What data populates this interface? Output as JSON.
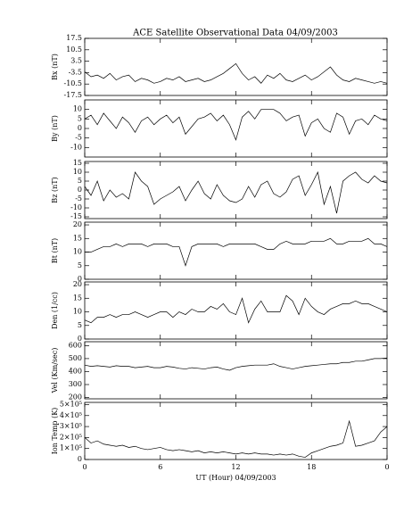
{
  "chart_data": [
    {
      "type": "line",
      "title": "ACE Satellite Observational Data   04/09/2003",
      "y_label": "Bx (nT)",
      "x": [
        0,
        0.5,
        1,
        1.5,
        2,
        2.5,
        3,
        3.5,
        4,
        4.5,
        5,
        5.5,
        6,
        6.5,
        7,
        7.5,
        8,
        8.5,
        9,
        9.5,
        10,
        10.5,
        11,
        11.5,
        12,
        12.5,
        13,
        13.5,
        14,
        14.5,
        15,
        15.5,
        16,
        16.5,
        17,
        17.5,
        18,
        18.5,
        19,
        19.5,
        20,
        20.5,
        21,
        21.5,
        22,
        22.5,
        23,
        23.5,
        24
      ],
      "series": [
        {
          "name": "Bx",
          "color": "#000000",
          "values": [
            -3,
            -6,
            -5,
            -7,
            -4,
            -8,
            -6,
            -5,
            -9,
            -7,
            -8,
            -10,
            -9,
            -7,
            -8,
            -6,
            -9,
            -8,
            -7,
            -9,
            -8,
            -6,
            -4,
            -1,
            2,
            -4,
            -8,
            -6,
            -10,
            -5,
            -7,
            -4,
            -8,
            -9,
            -7,
            -5,
            -8,
            -6,
            -3,
            0,
            -5,
            -8,
            -9,
            -7,
            -8,
            -9,
            -10,
            -9,
            -10
          ]
        }
      ],
      "ylim": [
        -17.5,
        17.5
      ],
      "yticks": [
        17.5,
        10.5,
        3.5,
        -3.5,
        -10.5,
        -17.5
      ]
    },
    {
      "type": "line",
      "y_label": "By (nT)",
      "x": [
        0,
        0.5,
        1,
        1.5,
        2,
        2.5,
        3,
        3.5,
        4,
        4.5,
        5,
        5.5,
        6,
        6.5,
        7,
        7.5,
        8,
        8.5,
        9,
        9.5,
        10,
        10.5,
        11,
        11.5,
        12,
        12.5,
        13,
        13.5,
        14,
        14.5,
        15,
        15.5,
        16,
        16.5,
        17,
        17.5,
        18,
        18.5,
        19,
        19.5,
        20,
        20.5,
        21,
        21.5,
        22,
        22.5,
        23,
        23.5,
        24
      ],
      "series": [
        {
          "name": "By",
          "color": "#000000",
          "values": [
            5,
            7,
            2,
            8,
            4,
            0,
            6,
            3,
            -2,
            4,
            6,
            2,
            5,
            7,
            3,
            6,
            -3,
            1,
            5,
            6,
            8,
            4,
            7,
            2,
            -6,
            6,
            9,
            5,
            10,
            10,
            10,
            8,
            4,
            6,
            7,
            -4,
            3,
            5,
            0,
            -2,
            8,
            6,
            -3,
            4,
            5,
            2,
            7,
            5,
            4
          ]
        }
      ],
      "ylim": [
        -15,
        15
      ],
      "yticks": [
        10,
        5,
        0,
        -5,
        -10
      ]
    },
    {
      "type": "line",
      "y_label": "Bz (nT)",
      "x": [
        0,
        0.5,
        1,
        1.5,
        2,
        2.5,
        3,
        3.5,
        4,
        4.5,
        5,
        5.5,
        6,
        6.5,
        7,
        7.5,
        8,
        8.5,
        9,
        9.5,
        10,
        10.5,
        11,
        11.5,
        12,
        12.5,
        13,
        13.5,
        14,
        14.5,
        15,
        15.5,
        16,
        16.5,
        17,
        17.5,
        18,
        18.5,
        19,
        19.5,
        20,
        20.5,
        21,
        21.5,
        22,
        22.5,
        23,
        23.5,
        24
      ],
      "series": [
        {
          "name": "Bz",
          "color": "#000000",
          "values": [
            2,
            -3,
            5,
            -6,
            0,
            -4,
            -2,
            -5,
            10,
            5,
            2,
            -8,
            -5,
            -3,
            -1,
            2,
            -6,
            0,
            5,
            -2,
            -5,
            3,
            -3,
            -6,
            -7,
            -5,
            2,
            -4,
            3,
            5,
            -2,
            -4,
            -1,
            6,
            8,
            -3,
            3,
            10,
            -8,
            2,
            -13,
            5,
            8,
            10,
            6,
            4,
            8,
            5,
            4
          ]
        }
      ],
      "ylim": [
        -16,
        16
      ],
      "yticks": [
        15,
        10,
        5,
        0,
        -5,
        -10,
        -15
      ]
    },
    {
      "type": "line",
      "y_label": "Bt (nT)",
      "x": [
        0,
        0.5,
        1,
        1.5,
        2,
        2.5,
        3,
        3.5,
        4,
        4.5,
        5,
        5.5,
        6,
        6.5,
        7,
        7.5,
        8,
        8.5,
        9,
        9.5,
        10,
        10.5,
        11,
        11.5,
        12,
        12.5,
        13,
        13.5,
        14,
        14.5,
        15,
        15.5,
        16,
        16.5,
        17,
        17.5,
        18,
        18.5,
        19,
        19.5,
        20,
        20.5,
        21,
        21.5,
        22,
        22.5,
        23,
        23.5,
        24
      ],
      "series": [
        {
          "name": "Bt",
          "color": "#000000",
          "values": [
            10,
            10,
            11,
            12,
            12,
            13,
            12,
            13,
            13,
            13,
            12,
            13,
            13,
            13,
            12,
            12,
            5,
            12,
            13,
            13,
            13,
            13,
            12,
            13,
            13,
            13,
            13,
            13,
            12,
            11,
            11,
            13,
            14,
            13,
            13,
            13,
            14,
            14,
            14,
            15,
            13,
            13,
            14,
            14,
            14,
            15,
            13,
            13,
            12
          ]
        }
      ],
      "ylim": [
        0,
        21
      ],
      "yticks": [
        0,
        5,
        10,
        15,
        20
      ]
    },
    {
      "type": "line",
      "y_label": "Den (1/cc)",
      "x": [
        0,
        0.5,
        1,
        1.5,
        2,
        2.5,
        3,
        3.5,
        4,
        4.5,
        5,
        5.5,
        6,
        6.5,
        7,
        7.5,
        8,
        8.5,
        9,
        9.5,
        10,
        10.5,
        11,
        11.5,
        12,
        12.5,
        13,
        13.5,
        14,
        14.5,
        15,
        15.5,
        16,
        16.5,
        17,
        17.5,
        18,
        18.5,
        19,
        19.5,
        20,
        20.5,
        21,
        21.5,
        22,
        22.5,
        23,
        23.5,
        24
      ],
      "series": [
        {
          "name": "Den",
          "color": "#000000",
          "values": [
            7,
            6,
            8,
            8,
            9,
            8,
            9,
            9,
            10,
            9,
            8,
            9,
            10,
            10,
            8,
            10,
            9,
            11,
            10,
            10,
            12,
            11,
            13,
            10,
            9,
            15,
            6,
            11,
            14,
            10,
            10,
            10,
            16,
            14,
            9,
            15,
            12,
            10,
            9,
            11,
            12,
            13,
            13,
            14,
            13,
            13,
            12,
            11,
            10
          ]
        }
      ],
      "ylim": [
        0,
        21
      ],
      "yticks": [
        0,
        5,
        10,
        15,
        20
      ]
    },
    {
      "type": "line",
      "y_label": "Vel (Km/sec)",
      "x": [
        0,
        0.5,
        1,
        1.5,
        2,
        2.5,
        3,
        3.5,
        4,
        4.5,
        5,
        5.5,
        6,
        6.5,
        7,
        7.5,
        8,
        8.5,
        9,
        9.5,
        10,
        10.5,
        11,
        11.5,
        12,
        12.5,
        13,
        13.5,
        14,
        14.5,
        15,
        15.5,
        16,
        16.5,
        17,
        17.5,
        18,
        18.5,
        19,
        19.5,
        20,
        20.5,
        21,
        21.5,
        22,
        22.5,
        23,
        23.5,
        24
      ],
      "series": [
        {
          "name": "Vel",
          "color": "#000000",
          "values": [
            450,
            440,
            445,
            440,
            435,
            445,
            440,
            440,
            430,
            435,
            440,
            430,
            430,
            440,
            435,
            425,
            420,
            430,
            425,
            420,
            430,
            435,
            420,
            410,
            430,
            440,
            445,
            450,
            450,
            450,
            460,
            440,
            430,
            420,
            430,
            440,
            445,
            450,
            455,
            460,
            460,
            470,
            470,
            480,
            480,
            490,
            500,
            500,
            505
          ]
        }
      ],
      "ylim": [
        190,
        630
      ],
      "yticks": [
        200,
        300,
        400,
        500,
        600
      ]
    },
    {
      "type": "line",
      "y_label": "Ion Temp (K)",
      "x_label": "UT (Hour)  04/09/2003",
      "x": [
        0,
        0.5,
        1,
        1.5,
        2,
        2.5,
        3,
        3.5,
        4,
        4.5,
        5,
        5.5,
        6,
        6.5,
        7,
        7.5,
        8,
        8.5,
        9,
        9.5,
        10,
        10.5,
        11,
        11.5,
        12,
        12.5,
        13,
        13.5,
        14,
        14.5,
        15,
        15.5,
        16,
        16.5,
        17,
        17.5,
        18,
        18.5,
        19,
        19.5,
        20,
        20.5,
        21,
        21.5,
        22,
        22.5,
        23,
        23.5,
        24
      ],
      "series": [
        {
          "name": "Ion Temp",
          "color": "#000000",
          "values": [
            200000,
            150000,
            170000,
            140000,
            130000,
            120000,
            130000,
            110000,
            120000,
            100000,
            90000,
            100000,
            110000,
            90000,
            80000,
            90000,
            80000,
            70000,
            80000,
            60000,
            70000,
            60000,
            70000,
            60000,
            50000,
            60000,
            50000,
            60000,
            50000,
            50000,
            40000,
            50000,
            40000,
            50000,
            30000,
            20000,
            60000,
            80000,
            100000,
            120000,
            130000,
            150000,
            350000,
            120000,
            130000,
            150000,
            170000,
            250000,
            300000
          ]
        }
      ],
      "ylim": [
        0,
        520000
      ],
      "yticks": [
        0,
        {
          "value": 100000,
          "label": "1×10⁵"
        },
        {
          "value": 200000,
          "label": "2×10⁵"
        },
        {
          "value": 300000,
          "label": "3×10⁵"
        },
        {
          "value": 400000,
          "label": "4×10⁵"
        },
        {
          "value": 500000,
          "label": "5×10⁵"
        }
      ],
      "xlim": [
        0,
        24
      ],
      "xticks": [
        0,
        6,
        12,
        18,
        {
          "value": 24,
          "label": "0"
        }
      ]
    }
  ]
}
